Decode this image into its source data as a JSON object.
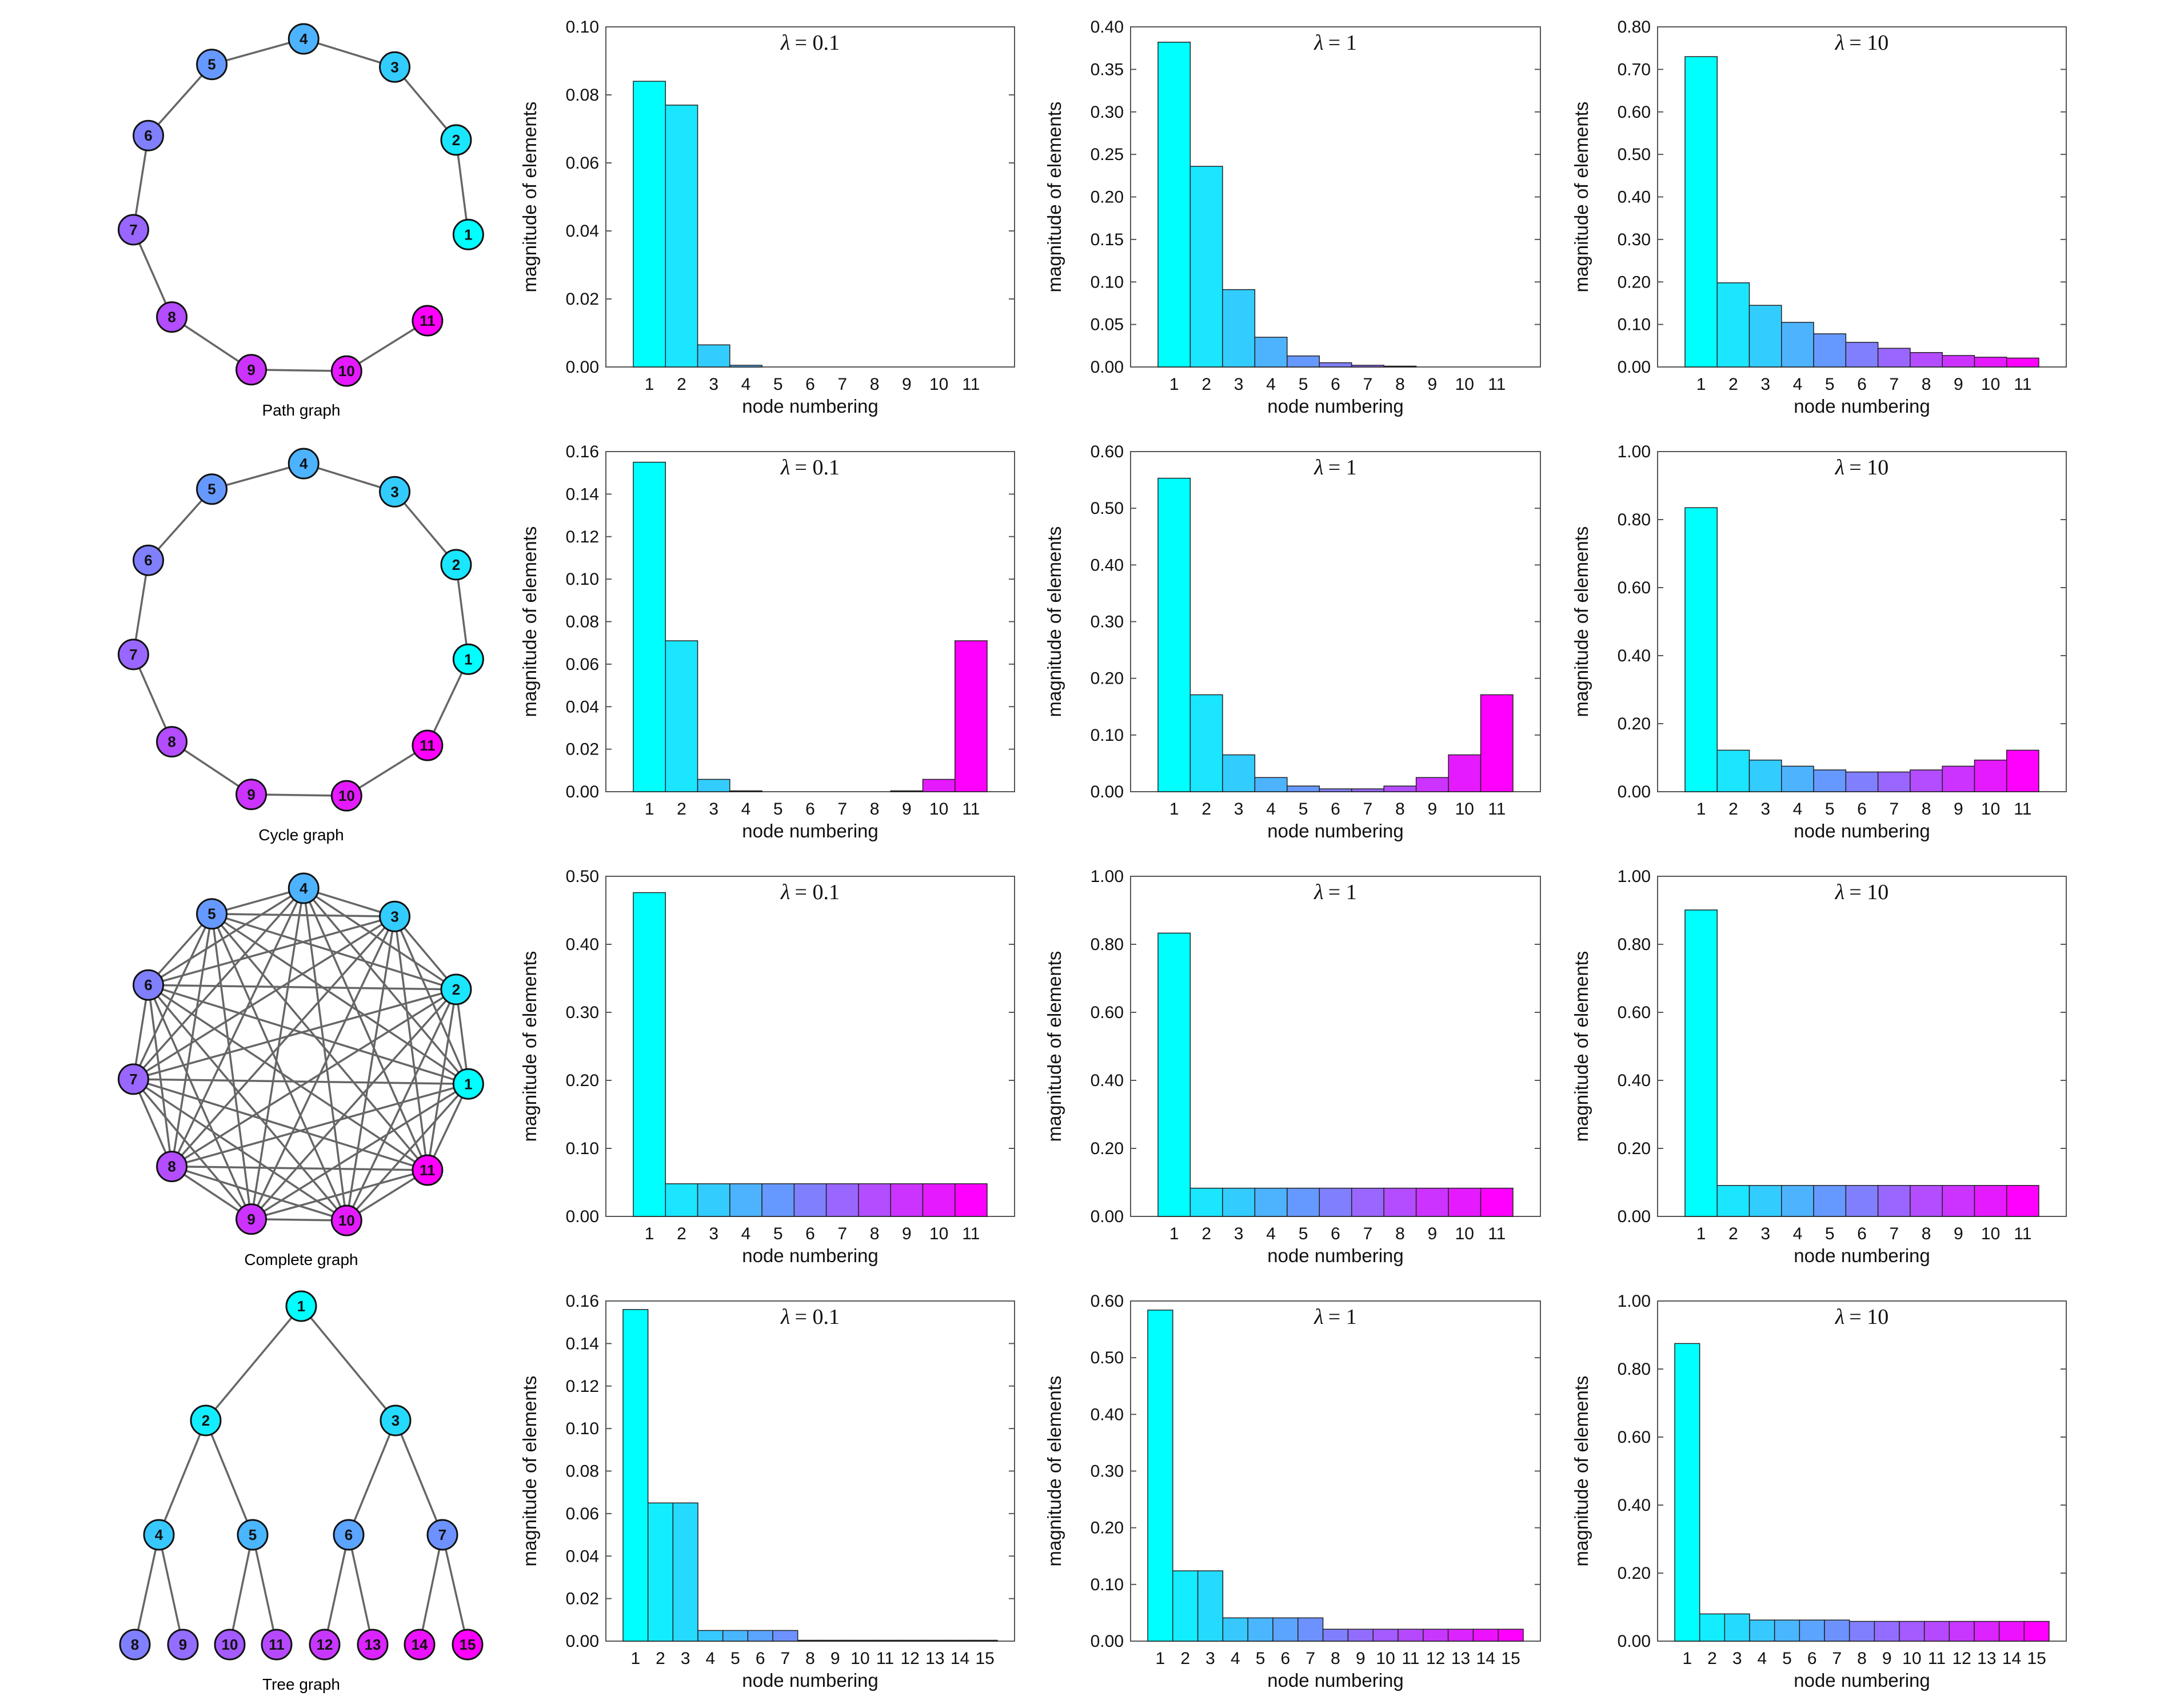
{
  "colors": {
    "start": "#00ffff",
    "end": "#ff00ff",
    "edge": "#666666",
    "frame": "#555555"
  },
  "rows": [
    {
      "graph": {
        "type": "path",
        "label": "Path graph",
        "nodes": [
          "1",
          "2",
          "3",
          "4",
          "5",
          "6",
          "7",
          "8",
          "9",
          "10",
          "11"
        ],
        "edges": [
          [
            1,
            2
          ],
          [
            2,
            3
          ],
          [
            3,
            4
          ],
          [
            4,
            5
          ],
          [
            5,
            6
          ],
          [
            6,
            7
          ],
          [
            7,
            8
          ],
          [
            8,
            9
          ],
          [
            9,
            10
          ],
          [
            10,
            11
          ]
        ]
      }
    },
    {
      "graph": {
        "type": "cycle",
        "label": "Cycle graph",
        "nodes": [
          "1",
          "2",
          "3",
          "4",
          "5",
          "6",
          "7",
          "8",
          "9",
          "10",
          "11"
        ],
        "edges": [
          [
            1,
            2
          ],
          [
            2,
            3
          ],
          [
            3,
            4
          ],
          [
            4,
            5
          ],
          [
            5,
            6
          ],
          [
            6,
            7
          ],
          [
            7,
            8
          ],
          [
            8,
            9
          ],
          [
            9,
            10
          ],
          [
            10,
            11
          ],
          [
            11,
            1
          ]
        ]
      }
    },
    {
      "graph": {
        "type": "complete",
        "label": "Complete graph",
        "nodes": [
          "1",
          "2",
          "3",
          "4",
          "5",
          "6",
          "7",
          "8",
          "9",
          "10",
          "11"
        ],
        "edges": "all"
      }
    },
    {
      "graph": {
        "type": "tree",
        "label": "Tree graph",
        "nodes": [
          "1",
          "2",
          "3",
          "4",
          "5",
          "6",
          "7",
          "8",
          "9",
          "10",
          "11",
          "12",
          "13",
          "14",
          "15"
        ],
        "edges": [
          [
            1,
            2
          ],
          [
            1,
            3
          ],
          [
            2,
            4
          ],
          [
            2,
            5
          ],
          [
            3,
            6
          ],
          [
            3,
            7
          ],
          [
            4,
            8
          ],
          [
            4,
            9
          ],
          [
            5,
            10
          ],
          [
            5,
            11
          ],
          [
            6,
            12
          ],
          [
            6,
            13
          ],
          [
            7,
            14
          ],
          [
            7,
            15
          ]
        ]
      }
    }
  ],
  "chart_data": [
    {
      "type": "bar",
      "row": 0,
      "title": "λ = 0.1",
      "title_var": "λ",
      "title_val": "= 0.1",
      "xlabel": "node numbering",
      "ylabel": "magnitude of elements",
      "categories": [
        "1",
        "2",
        "3",
        "4",
        "5",
        "6",
        "7",
        "8",
        "9",
        "10",
        "11"
      ],
      "values": [
        0.084,
        0.077,
        0.0065,
        0.0005,
        0,
        0,
        0,
        0,
        0,
        0,
        0
      ],
      "ylim": [
        0,
        0.1
      ],
      "yticks": [
        "0.00",
        "0.02",
        "0.04",
        "0.06",
        "0.08",
        "0.10"
      ]
    },
    {
      "type": "bar",
      "row": 0,
      "title": "λ = 1",
      "title_var": "λ",
      "title_val": "= 1",
      "xlabel": "node numbering",
      "ylabel": "magnitude of elements",
      "categories": [
        "1",
        "2",
        "3",
        "4",
        "5",
        "6",
        "7",
        "8",
        "9",
        "10",
        "11"
      ],
      "values": [
        0.382,
        0.236,
        0.091,
        0.035,
        0.013,
        0.005,
        0.002,
        0.001,
        0,
        0,
        0
      ],
      "ylim": [
        0,
        0.4
      ],
      "yticks": [
        "0.00",
        "0.05",
        "0.10",
        "0.15",
        "0.20",
        "0.25",
        "0.30",
        "0.35",
        "0.40"
      ]
    },
    {
      "type": "bar",
      "row": 0,
      "title": "λ = 10",
      "title_var": "λ",
      "title_val": "= 10",
      "xlabel": "node numbering",
      "ylabel": "magnitude of elements",
      "categories": [
        "1",
        "2",
        "3",
        "4",
        "5",
        "6",
        "7",
        "8",
        "9",
        "10",
        "11"
      ],
      "values": [
        0.73,
        0.198,
        0.145,
        0.105,
        0.078,
        0.058,
        0.044,
        0.034,
        0.027,
        0.023,
        0.021
      ],
      "ylim": [
        0,
        0.8
      ],
      "yticks": [
        "0.00",
        "0.10",
        "0.20",
        "0.30",
        "0.40",
        "0.50",
        "0.60",
        "0.70",
        "0.80"
      ]
    },
    {
      "type": "bar",
      "row": 1,
      "title": "λ = 0.1",
      "title_var": "λ",
      "title_val": "= 0.1",
      "xlabel": "node numbering",
      "ylabel": "magnitude of elements",
      "categories": [
        "1",
        "2",
        "3",
        "4",
        "5",
        "6",
        "7",
        "8",
        "9",
        "10",
        "11"
      ],
      "values": [
        0.155,
        0.071,
        0.0058,
        0.0004,
        0,
        0,
        0,
        0,
        0.0004,
        0.0058,
        0.071
      ],
      "ylim": [
        0,
        0.16
      ],
      "yticks": [
        "0.00",
        "0.02",
        "0.04",
        "0.06",
        "0.08",
        "0.10",
        "0.12",
        "0.14",
        "0.16"
      ]
    },
    {
      "type": "bar",
      "row": 1,
      "title": "λ = 1",
      "title_var": "λ",
      "title_val": "= 1",
      "xlabel": "node numbering",
      "ylabel": "magnitude of elements",
      "categories": [
        "1",
        "2",
        "3",
        "4",
        "5",
        "6",
        "7",
        "8",
        "9",
        "10",
        "11"
      ],
      "values": [
        0.553,
        0.171,
        0.065,
        0.025,
        0.01,
        0.005,
        0.005,
        0.01,
        0.025,
        0.065,
        0.171
      ],
      "ylim": [
        0,
        0.6
      ],
      "yticks": [
        "0.00",
        "0.10",
        "0.20",
        "0.30",
        "0.40",
        "0.50",
        "0.60"
      ]
    },
    {
      "type": "bar",
      "row": 1,
      "title": "λ = 10",
      "title_var": "λ",
      "title_val": "= 10",
      "xlabel": "node numbering",
      "ylabel": "magnitude of elements",
      "categories": [
        "1",
        "2",
        "3",
        "4",
        "5",
        "6",
        "7",
        "8",
        "9",
        "10",
        "11"
      ],
      "values": [
        0.835,
        0.122,
        0.093,
        0.075,
        0.064,
        0.058,
        0.058,
        0.064,
        0.075,
        0.093,
        0.122
      ],
      "ylim": [
        0,
        1.0
      ],
      "yticks": [
        "0.00",
        "0.20",
        "0.40",
        "0.60",
        "0.80",
        "1.00"
      ]
    },
    {
      "type": "bar",
      "row": 2,
      "title": "λ = 0.1",
      "title_var": "λ",
      "title_val": "= 0.1",
      "xlabel": "node numbering",
      "ylabel": "magnitude of elements",
      "categories": [
        "1",
        "2",
        "3",
        "4",
        "5",
        "6",
        "7",
        "8",
        "9",
        "10",
        "11"
      ],
      "values": [
        0.476,
        0.048,
        0.048,
        0.048,
        0.048,
        0.048,
        0.048,
        0.048,
        0.048,
        0.048,
        0.048
      ],
      "ylim": [
        0,
        0.5
      ],
      "yticks": [
        "0.00",
        "0.10",
        "0.20",
        "0.30",
        "0.40",
        "0.50"
      ]
    },
    {
      "type": "bar",
      "row": 2,
      "title": "λ = 1",
      "title_var": "λ",
      "title_val": "= 1",
      "xlabel": "node numbering",
      "ylabel": "magnitude of elements",
      "categories": [
        "1",
        "2",
        "3",
        "4",
        "5",
        "6",
        "7",
        "8",
        "9",
        "10",
        "11"
      ],
      "values": [
        0.833,
        0.083,
        0.083,
        0.083,
        0.083,
        0.083,
        0.083,
        0.083,
        0.083,
        0.083,
        0.083
      ],
      "ylim": [
        0,
        1.0
      ],
      "yticks": [
        "0.00",
        "0.20",
        "0.40",
        "0.60",
        "0.80",
        "1.00"
      ]
    },
    {
      "type": "bar",
      "row": 2,
      "title": "λ = 10",
      "title_var": "λ",
      "title_val": "= 10",
      "xlabel": "node numbering",
      "ylabel": "magnitude of elements",
      "categories": [
        "1",
        "2",
        "3",
        "4",
        "5",
        "6",
        "7",
        "8",
        "9",
        "10",
        "11"
      ],
      "values": [
        0.901,
        0.091,
        0.091,
        0.091,
        0.091,
        0.091,
        0.091,
        0.091,
        0.091,
        0.091,
        0.091
      ],
      "ylim": [
        0,
        1.0
      ],
      "yticks": [
        "0.00",
        "0.20",
        "0.40",
        "0.60",
        "0.80",
        "1.00"
      ]
    },
    {
      "type": "bar",
      "row": 3,
      "title": "λ = 0.1",
      "title_var": "λ",
      "title_val": "= 0.1",
      "xlabel": "node numbering",
      "ylabel": "magnitude of elements",
      "categories": [
        "1",
        "2",
        "3",
        "4",
        "5",
        "6",
        "7",
        "8",
        "9",
        "10",
        "11",
        "12",
        "13",
        "14",
        "15"
      ],
      "values": [
        0.156,
        0.065,
        0.065,
        0.005,
        0.005,
        0.005,
        0.005,
        0.0004,
        0.0004,
        0.0004,
        0.0004,
        0.0004,
        0.0004,
        0.0004,
        0.0004
      ],
      "ylim": [
        0,
        0.16
      ],
      "yticks": [
        "0.00",
        "0.02",
        "0.04",
        "0.06",
        "0.08",
        "0.10",
        "0.12",
        "0.14",
        "0.16"
      ]
    },
    {
      "type": "bar",
      "row": 3,
      "title": "λ = 1",
      "title_var": "λ",
      "title_val": "= 1",
      "xlabel": "node numbering",
      "ylabel": "magnitude of elements",
      "categories": [
        "1",
        "2",
        "3",
        "4",
        "5",
        "6",
        "7",
        "8",
        "9",
        "10",
        "11",
        "12",
        "13",
        "14",
        "15"
      ],
      "values": [
        0.584,
        0.124,
        0.124,
        0.041,
        0.041,
        0.041,
        0.041,
        0.021,
        0.021,
        0.021,
        0.021,
        0.021,
        0.021,
        0.021,
        0.021
      ],
      "ylim": [
        0,
        0.6
      ],
      "yticks": [
        "0.00",
        "0.10",
        "0.20",
        "0.30",
        "0.40",
        "0.50",
        "0.60"
      ]
    },
    {
      "type": "bar",
      "row": 3,
      "title": "λ = 10",
      "title_var": "λ",
      "title_val": "= 10",
      "xlabel": "node numbering",
      "ylabel": "magnitude of elements",
      "categories": [
        "1",
        "2",
        "3",
        "4",
        "5",
        "6",
        "7",
        "8",
        "9",
        "10",
        "11",
        "12",
        "13",
        "14",
        "15"
      ],
      "values": [
        0.875,
        0.08,
        0.08,
        0.062,
        0.062,
        0.062,
        0.062,
        0.058,
        0.058,
        0.058,
        0.058,
        0.058,
        0.058,
        0.058,
        0.058
      ],
      "ylim": [
        0,
        1.0
      ],
      "yticks": [
        "0.00",
        "0.20",
        "0.40",
        "0.60",
        "0.80",
        "1.00"
      ]
    }
  ]
}
